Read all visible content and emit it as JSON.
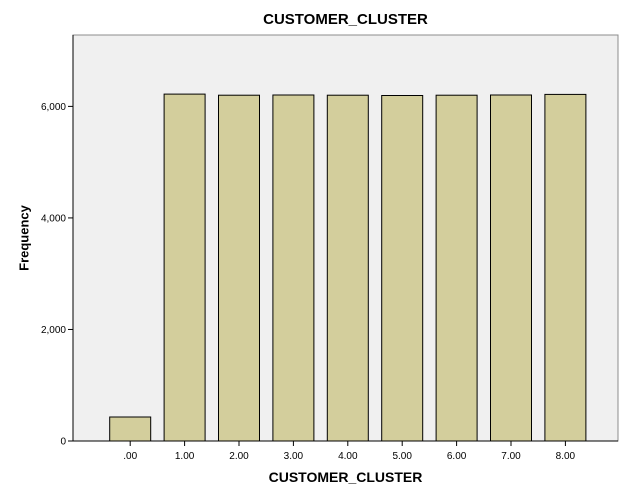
{
  "chart_data": {
    "type": "bar",
    "title": "CUSTOMER_CLUSTER",
    "xlabel": "CUSTOMER_CLUSTER",
    "ylabel": "Frequency",
    "categories": [
      ".00",
      "1.00",
      "2.00",
      "3.00",
      "4.00",
      "5.00",
      "6.00",
      "7.00",
      "8.00"
    ],
    "values": [
      430,
      6220,
      6200,
      6205,
      6200,
      6195,
      6200,
      6205,
      6215
    ],
    "ylim": [
      0,
      7280
    ],
    "yticks": [
      0,
      2000,
      4000,
      6000
    ],
    "ytick_labels": [
      "0",
      "2,000",
      "4,000",
      "6,000"
    ],
    "grid": false,
    "legend": "none",
    "colors": {
      "bar_fill": "#d3ce9c",
      "bar_stroke": "#000000",
      "plot_background": "#f0f0f0",
      "axis": "#000000"
    }
  }
}
